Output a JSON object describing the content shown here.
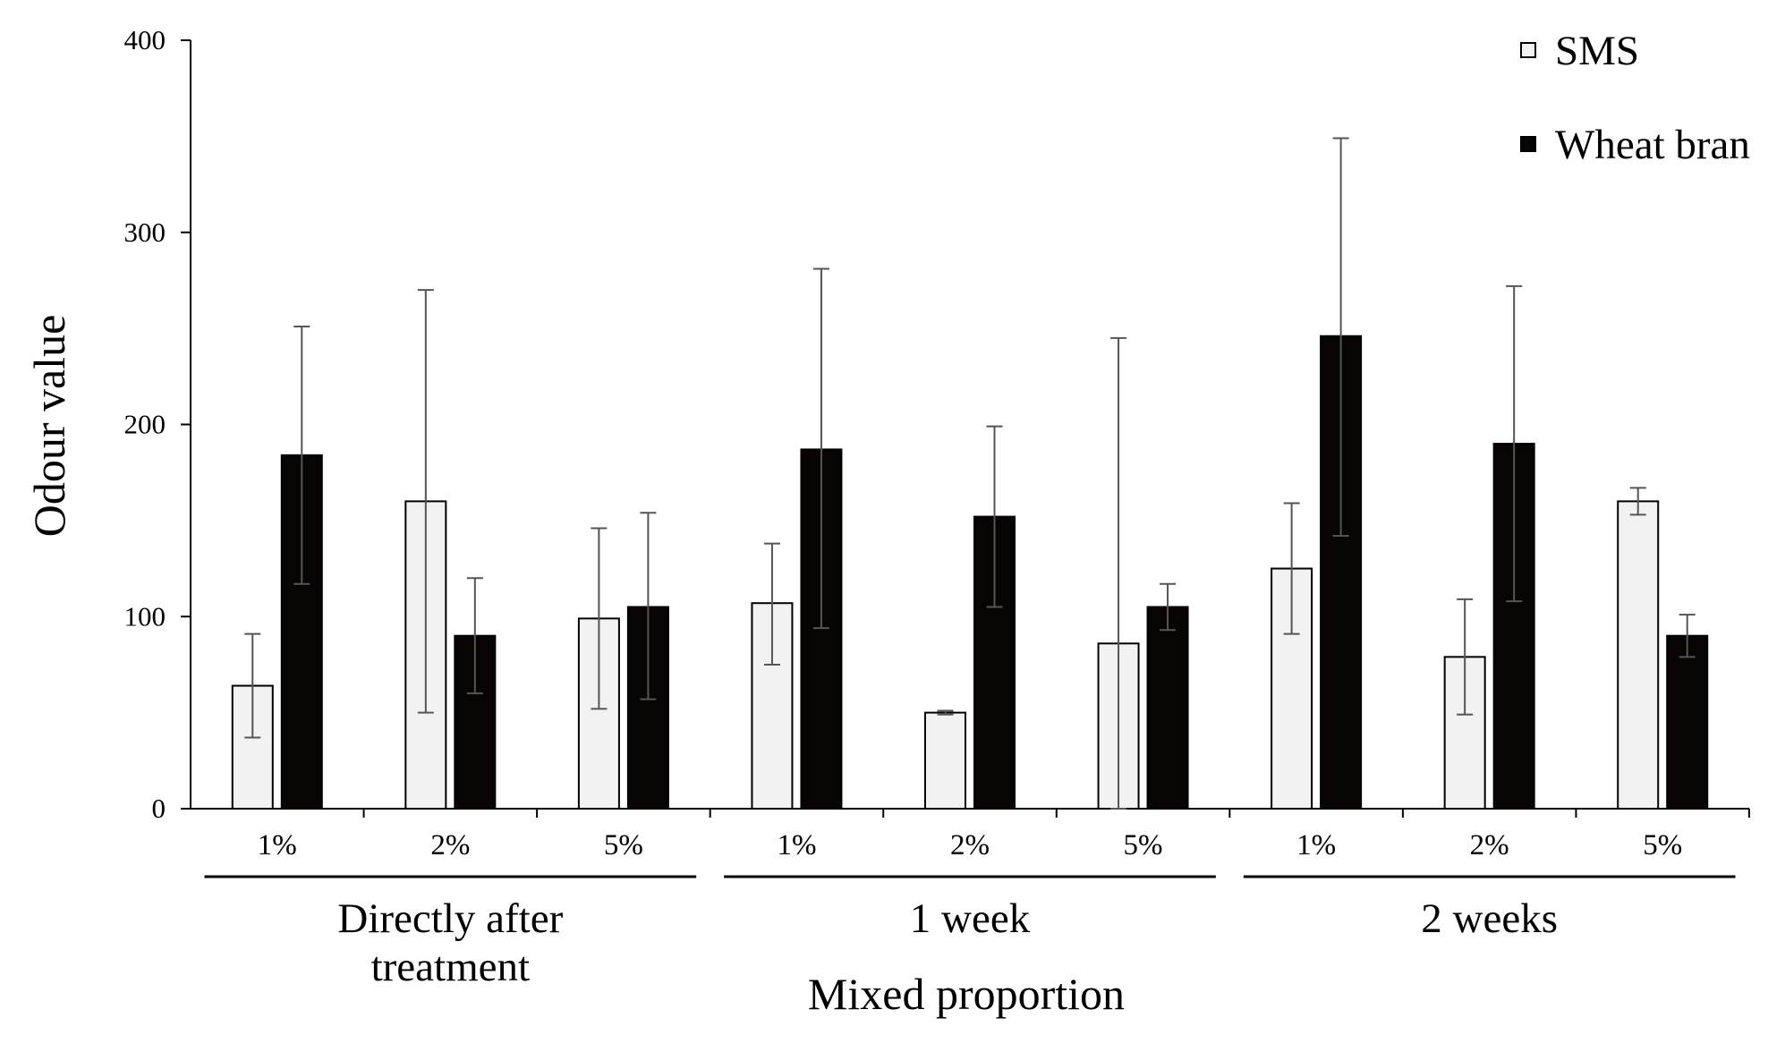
{
  "chart_data": {
    "type": "bar",
    "title": "",
    "xlabel": "Mixed proportion",
    "ylabel": "Odour value",
    "ylim": [
      0,
      400
    ],
    "yticks": [
      0,
      100,
      200,
      300,
      400
    ],
    "grid": false,
    "legend_position": "top-right",
    "groups": [
      {
        "label": "Directly after\ntreatment",
        "categories": [
          "1%",
          "2%",
          "5%"
        ]
      },
      {
        "label": "1 week",
        "categories": [
          "1%",
          "2%",
          "5%"
        ]
      },
      {
        "label": "2 weeks",
        "categories": [
          "1%",
          "2%",
          "5%"
        ]
      }
    ],
    "series": [
      {
        "name": "SMS",
        "color": "#f2f2f2",
        "values": [
          64,
          160,
          99,
          107,
          50,
          86,
          125,
          79,
          160
        ],
        "error_low": [
          37,
          50,
          52,
          75,
          49,
          0,
          91,
          49,
          153
        ],
        "error_high": [
          91,
          270,
          146,
          138,
          51,
          245,
          159,
          109,
          167
        ]
      },
      {
        "name": "Wheat bran",
        "color": "#080404",
        "values": [
          184,
          90,
          105,
          187,
          152,
          105,
          246,
          190,
          90
        ],
        "error_low": [
          117,
          60,
          57,
          94,
          105,
          93,
          142,
          108,
          79
        ],
        "error_high": [
          251,
          120,
          154,
          281,
          199,
          117,
          349,
          272,
          101
        ]
      }
    ]
  }
}
